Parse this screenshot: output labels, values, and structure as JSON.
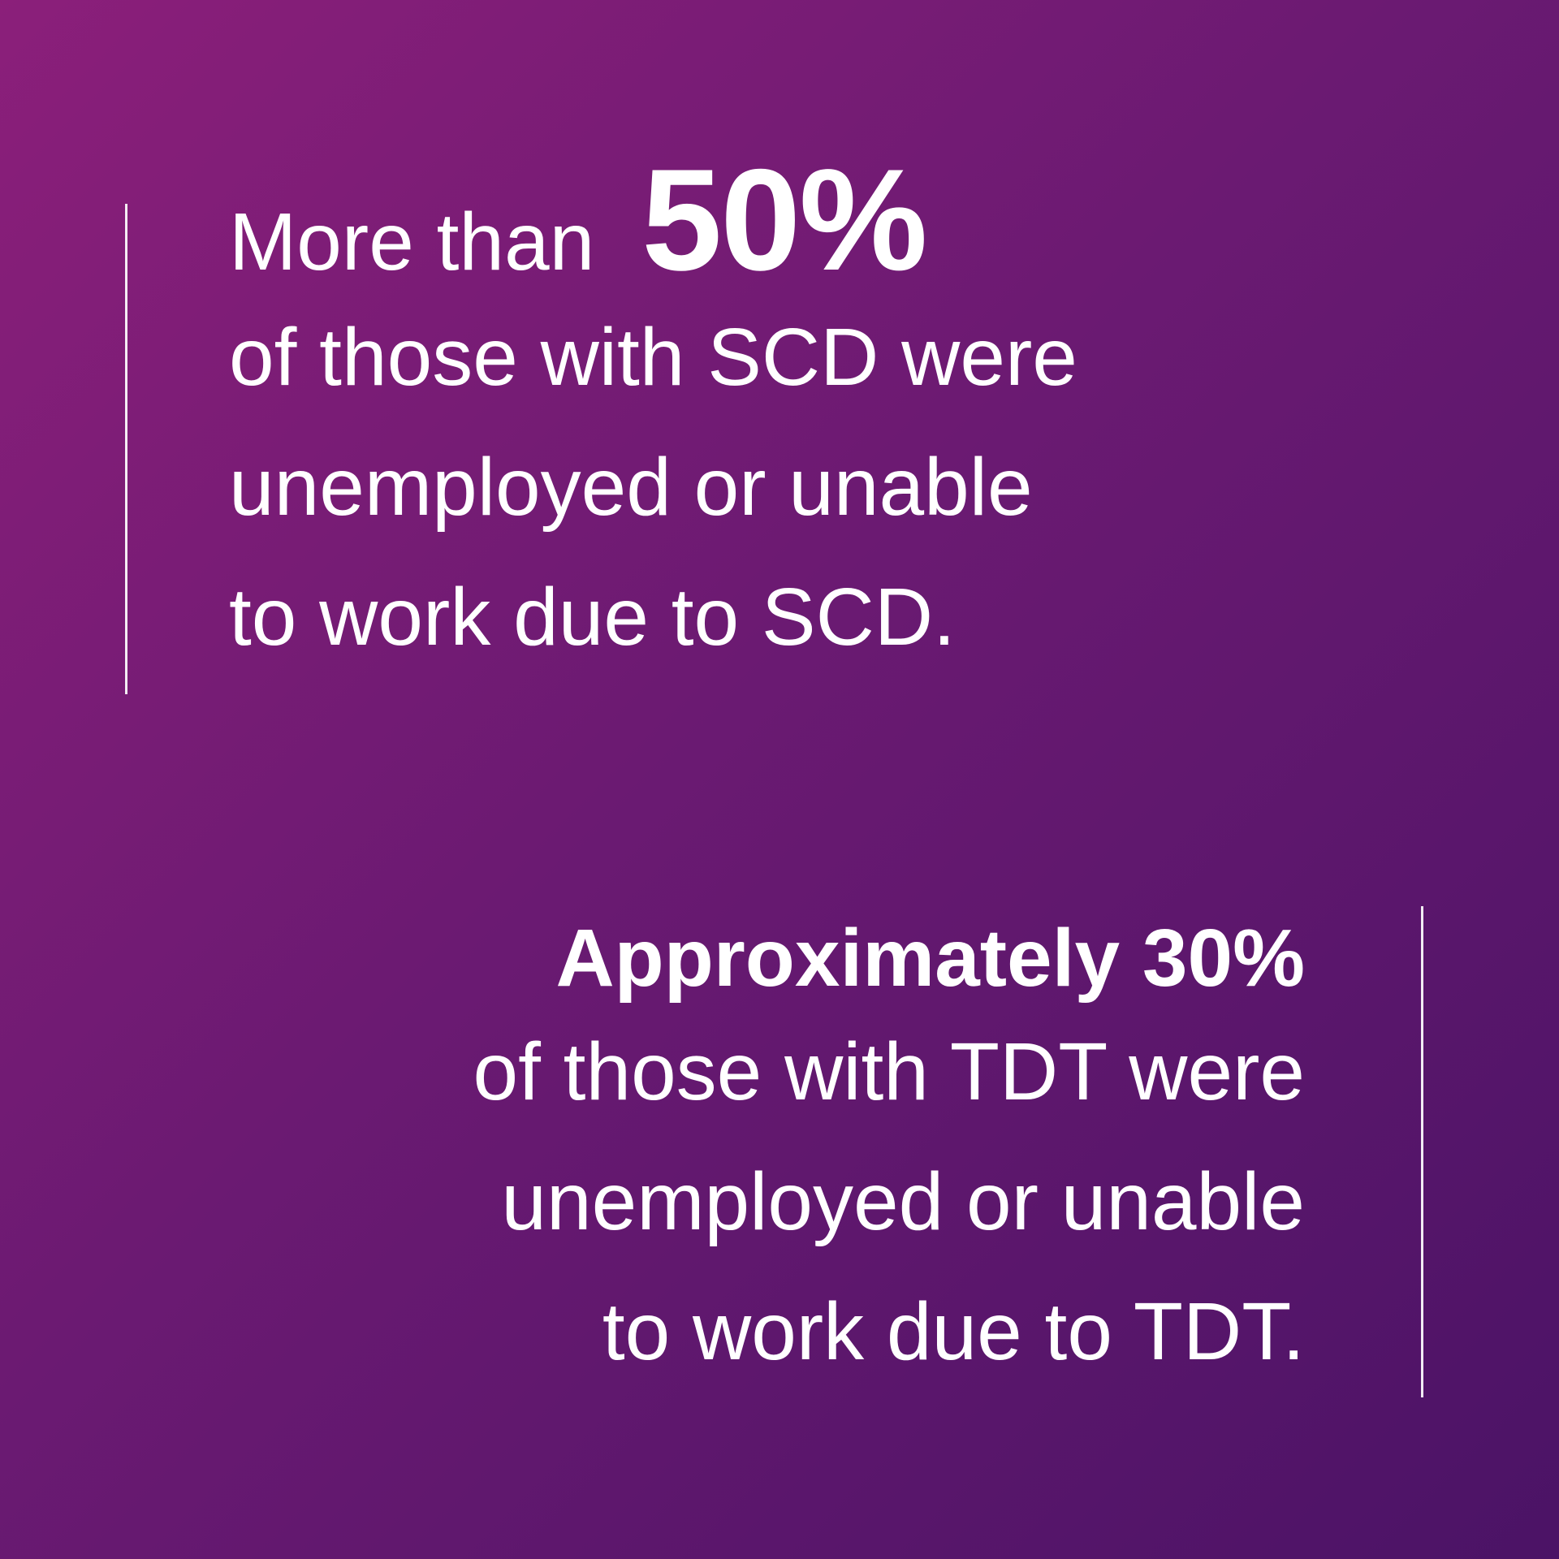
{
  "stat_one": {
    "lead": "More than",
    "percent": "50%",
    "lines": [
      "of those with SCD were",
      "unemployed or unable",
      "to work due to SCD."
    ]
  },
  "stat_two": {
    "headline": "Approximately 30%",
    "lines": [
      "of those with TDT were",
      "unemployed or unable",
      "to work due to TDT."
    ]
  },
  "colors": {
    "gradient_start": "#8b1f7a",
    "gradient_end": "#4b1366",
    "text": "#ffffff"
  }
}
